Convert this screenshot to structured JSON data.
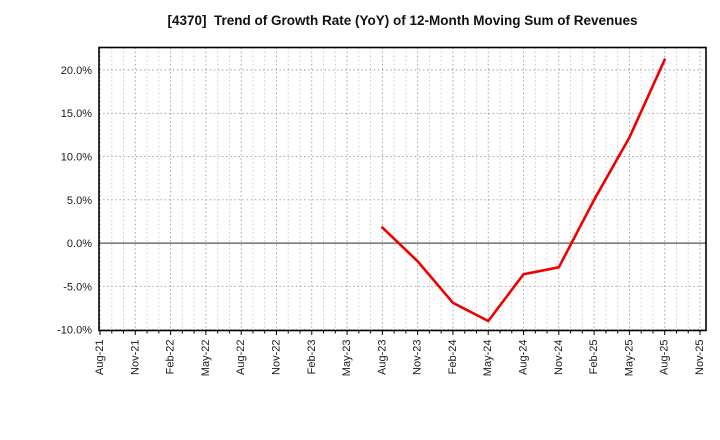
{
  "chart_data": {
    "type": "line",
    "title": "[4370]  Trend of Growth Rate (YoY) of 12-Month Moving Sum of Revenues",
    "xlabel": "",
    "ylabel": "",
    "x_tick_labels": [
      "Aug-21",
      "Nov-21",
      "Feb-22",
      "May-22",
      "Aug-22",
      "Nov-22",
      "Feb-23",
      "May-23",
      "Aug-23",
      "Nov-23",
      "Feb-24",
      "May-24",
      "Aug-24",
      "Nov-24",
      "Feb-25",
      "May-25",
      "Aug-25",
      "Nov-25"
    ],
    "months_per_tick": 3,
    "total_months": 51,
    "y_ticks": [
      20,
      15,
      10,
      5,
      0,
      -5,
      -10
    ],
    "y_tick_labels": [
      "20.0%",
      "15.0%",
      "10.0%",
      "5.0%",
      "0.0%",
      "-5.0%",
      "-10.0%"
    ],
    "ylim": [
      -10.1,
      22.6
    ],
    "grid": {
      "style": "dotted",
      "minor_vertical": "monthly",
      "major_vertical": "quarterly",
      "zero_line": "solid"
    },
    "legend": null,
    "series": [
      {
        "name": "Growth Rate (YoY) of 12-Month Moving Sum of Revenues",
        "color": "#ee0000",
        "points": [
          {
            "label": "Aug-23",
            "value": 1.8
          },
          {
            "label": "Nov-23",
            "value": -2.1
          },
          {
            "label": "Feb-24",
            "value": -6.9
          },
          {
            "label": "May-24",
            "value": -9.0
          },
          {
            "label": "Aug-24",
            "value": -3.6
          },
          {
            "label": "Nov-24",
            "value": -2.8
          },
          {
            "label": "Feb-25",
            "value": 5.0
          },
          {
            "label": "May-25",
            "value": 12.2
          },
          {
            "label": "Aug-25",
            "value": 21.2
          }
        ]
      }
    ],
    "colors": {
      "background": "#ffffff",
      "plot_border": "#000000",
      "grid_major": "#999999",
      "grid_minor": "#c6c6c6",
      "zero_line": "#555555",
      "tick_text": "#1a1a1a",
      "title_text": "#111111",
      "line": "#ee0000"
    }
  }
}
